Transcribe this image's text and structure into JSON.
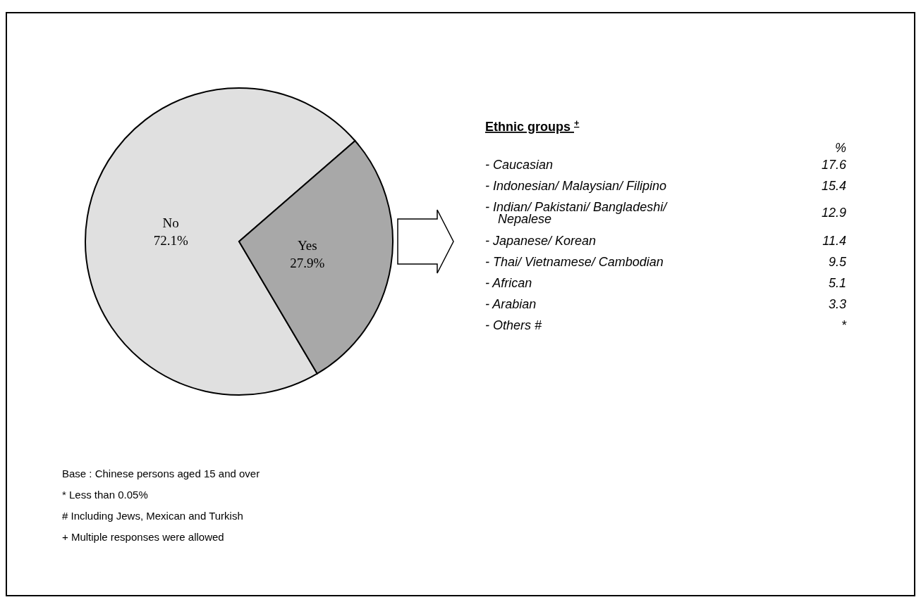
{
  "chart_data": [
    {
      "type": "pie",
      "categories": [
        "No",
        "Yes"
      ],
      "values": [
        72.1,
        27.9
      ],
      "colors": [
        "#e0e0e0",
        "#a8a8a8"
      ],
      "value_labels": [
        "72.1%",
        "27.9%"
      ],
      "annotations": [
        "Base : Chinese persons aged 15 and over",
        "* Less than 0.05%",
        "# Including Jews, Mexican and Turkish",
        "+ Multiple responses were allowed"
      ]
    },
    {
      "type": "other",
      "title": "Ethnic groups $^{+}$",
      "ylabel": "%",
      "categories": [
        "- Caucasian",
        "- Indonesian/ Malaysian/ Filipino",
        "- Indian/ Pakistani/ Bangladeshi/ Nepalese",
        "- Japanese/ Korean",
        "- Thai/ Vietnamese/ Cambodian",
        "- African",
        "- Arabian",
        "- Others #"
      ],
      "value_labels": [
        "17.6",
        "15.4",
        "12.9",
        "11.4",
        "9.5",
        "5.1",
        "3.3",
        "*"
      ]
    }
  ]
}
